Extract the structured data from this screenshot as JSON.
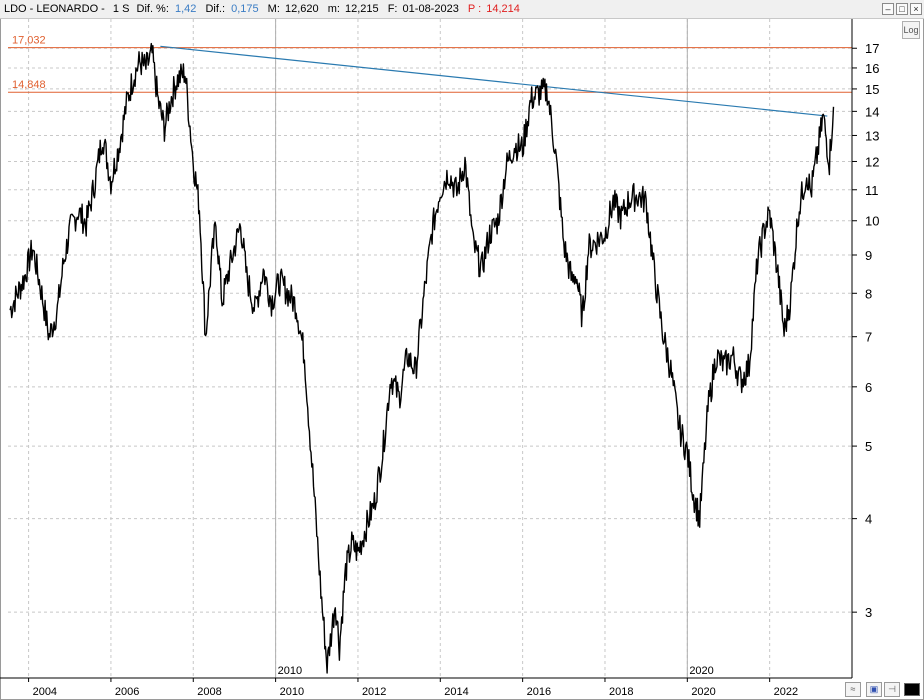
{
  "header": {
    "symbol": "LDO - LEONARDO -",
    "period": "1 S",
    "dif_pct_label": "Dif. %:",
    "dif_pct_value": "1,42",
    "dif_label": "Dif.:",
    "dif_value": "0,175",
    "max_label": "M:",
    "max_value": "12,620",
    "min_label": "m:",
    "min_value": "12,215",
    "date_label": "F:",
    "date_value": "01-08-2023",
    "price_label": "P :",
    "price_value": "14,214"
  },
  "controls": {
    "log_label": "Log",
    "minimize_symbol": "–",
    "maximize_symbol": "□",
    "close_symbol": "×"
  },
  "colors": {
    "price_line": "#000000",
    "trendline": "#2a7ab0",
    "hline": "#e06030",
    "hline_label": "#e06030",
    "grid": "#c8c8c8",
    "header_blue": "#3a7cc4",
    "header_red": "#e02020"
  },
  "chart_data": {
    "type": "line",
    "scale": "log",
    "grid": true,
    "ylim": [
      2.45,
      18.6
    ],
    "xlim": [
      2003.5,
      2024.0
    ],
    "y_ticks": [
      3,
      4,
      5,
      6,
      7,
      8,
      9,
      10,
      11,
      12,
      13,
      14,
      15,
      16,
      17
    ],
    "x_ticks": [
      2004,
      2006,
      2008,
      2010,
      2012,
      2014,
      2016,
      2018,
      2020,
      2022
    ],
    "x_major_marks": [
      "2010",
      "2020"
    ],
    "horizontal_lines": [
      {
        "label": "17,032",
        "value": 17.032
      },
      {
        "label": "14,848",
        "value": 14.848
      }
    ],
    "trendline": {
      "x": [
        2007.2,
        2023.4
      ],
      "y": [
        17.1,
        13.8
      ]
    },
    "series": [
      {
        "x": [
          2003.55,
          2003.9,
          2004.1,
          2004.3,
          2004.5,
          2004.7,
          2004.85,
          2005.0,
          2005.2,
          2005.4,
          2005.6,
          2005.8,
          2006.0,
          2006.2,
          2006.4,
          2006.55,
          2006.7,
          2006.85,
          2007.0,
          2007.15,
          2007.3,
          2007.45,
          2007.6,
          2007.8,
          2008.0,
          2008.15,
          2008.3,
          2008.45,
          2008.55,
          2008.7,
          2008.85,
          2009.0,
          2009.15,
          2009.3,
          2009.5,
          2009.7,
          2009.9,
          2010.1,
          2010.3,
          2010.5,
          2010.7,
          2010.9,
          2011.1,
          2011.25,
          2011.35,
          2011.45,
          2011.55,
          2011.7,
          2011.85,
          2012.0,
          2012.2,
          2012.4,
          2012.6,
          2012.8,
          2013.0,
          2013.2,
          2013.4,
          2013.6,
          2013.8,
          2014.0,
          2014.2,
          2014.4,
          2014.6,
          2014.8,
          2015.0,
          2015.2,
          2015.4,
          2015.6,
          2015.8,
          2016.0,
          2016.2,
          2016.4,
          2016.6,
          2016.8,
          2017.0,
          2017.2,
          2017.3,
          2017.45,
          2017.6,
          2017.8,
          2018.0,
          2018.2,
          2018.4,
          2018.6,
          2018.8,
          2019.0,
          2019.2,
          2019.4,
          2019.6,
          2019.8,
          2020.0,
          2020.15,
          2020.3,
          2020.5,
          2020.7,
          2020.9,
          2021.1,
          2021.3,
          2021.5,
          2021.7,
          2021.9,
          2022.0,
          2022.2,
          2022.35,
          2022.5,
          2022.7,
          2022.9,
          2023.0,
          2023.15,
          2023.3,
          2023.45,
          2023.55
        ],
        "y": [
          7.6,
          8.4,
          9.2,
          8.1,
          7.0,
          7.6,
          8.8,
          9.7,
          10.3,
          9.9,
          11.2,
          13.0,
          11.3,
          12.6,
          14.5,
          15.6,
          16.3,
          16.0,
          16.7,
          14.4,
          13.3,
          14.5,
          15.4,
          15.8,
          12.0,
          10.4,
          7.0,
          8.9,
          9.9,
          7.8,
          8.5,
          9.2,
          9.9,
          8.4,
          7.6,
          8.6,
          7.8,
          8.3,
          8.0,
          7.7,
          6.6,
          4.6,
          3.2,
          2.55,
          2.8,
          3.1,
          2.7,
          3.4,
          3.7,
          3.6,
          3.9,
          4.2,
          4.9,
          6.2,
          5.8,
          6.6,
          6.3,
          7.9,
          9.7,
          11.0,
          11.6,
          10.9,
          12.0,
          9.3,
          8.6,
          9.6,
          10.0,
          11.8,
          12.6,
          12.5,
          14.5,
          14.8,
          14.9,
          12.3,
          9.3,
          8.3,
          8.5,
          7.4,
          9.2,
          9.4,
          9.6,
          10.6,
          10.1,
          10.7,
          10.8,
          10.6,
          8.5,
          7.1,
          6.3,
          5.3,
          4.9,
          4.3,
          4.0,
          5.6,
          6.6,
          6.4,
          6.6,
          6.1,
          6.4,
          8.8,
          9.9,
          10.2,
          8.5,
          7.1,
          7.8,
          10.3,
          11.6,
          10.9,
          12.2,
          13.8,
          12.0,
          14.2
        ]
      }
    ]
  }
}
